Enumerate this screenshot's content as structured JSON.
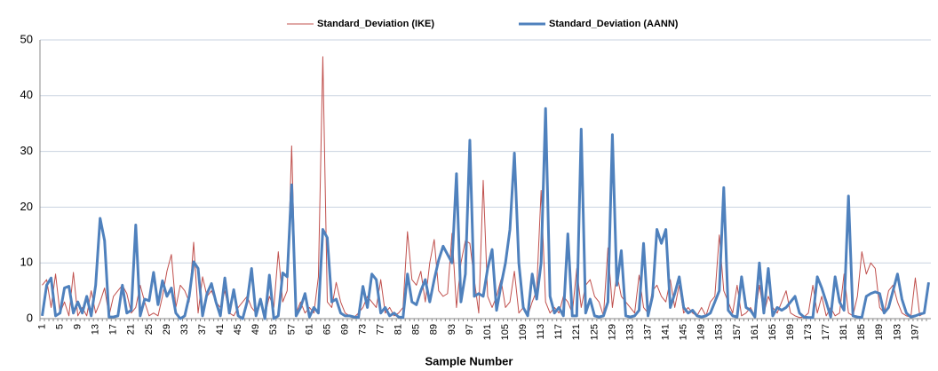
{
  "chart_data": {
    "type": "line",
    "xlabel": "Sample Number",
    "categories": [
      "1",
      null,
      null,
      null,
      "5",
      null,
      null,
      null,
      "9",
      null,
      null,
      null,
      "13",
      null,
      null,
      null,
      "17",
      null,
      null,
      null,
      "21",
      null,
      null,
      null,
      "25",
      null,
      null,
      null,
      "29",
      null,
      null,
      null,
      "33",
      null,
      null,
      null,
      "37",
      null,
      null,
      null,
      "41",
      null,
      null,
      null,
      "45",
      null,
      null,
      null,
      "49",
      null,
      null,
      null,
      "53",
      null,
      null,
      null,
      "57",
      null,
      null,
      null,
      "61",
      null,
      null,
      null,
      "65",
      null,
      null,
      null,
      "69",
      null,
      null,
      null,
      "73",
      null,
      null,
      null,
      "77",
      null,
      null,
      null,
      "81",
      null,
      null,
      null,
      "85",
      null,
      null,
      null,
      "89",
      null,
      null,
      null,
      "93",
      null,
      null,
      null,
      "97",
      null,
      null,
      null,
      "101",
      null,
      null,
      null,
      "105",
      null,
      null,
      null,
      "109",
      null,
      null,
      null,
      "113",
      null,
      null,
      null,
      "117",
      null,
      null,
      null,
      "121",
      null,
      null,
      null,
      "125",
      null,
      null,
      null,
      "129",
      null,
      null,
      null,
      "133",
      null,
      null,
      null,
      "137",
      null,
      null,
      null,
      "141",
      null,
      null,
      null,
      "145",
      null,
      null,
      null,
      "149",
      null,
      null,
      null,
      "153",
      null,
      null,
      null,
      "157",
      null,
      null,
      null,
      "161",
      null,
      null,
      null,
      "165",
      null,
      null,
      null,
      "169",
      null,
      null,
      null,
      "173",
      null,
      null,
      null,
      "177",
      null,
      null,
      null,
      "181",
      null,
      null,
      null,
      "185",
      null,
      null,
      null,
      "189",
      null,
      null,
      null,
      "193",
      null,
      null,
      null,
      "197",
      null,
      null,
      null
    ],
    "series": [
      {
        "name": "Standard_Deviation (IKE)",
        "color": "#c0504d",
        "width": 1,
        "values": [
          6,
          7,
          2,
          8,
          1,
          3,
          0.5,
          8.3,
          0.5,
          2,
          0.5,
          5,
          1,
          3,
          5.5,
          0.5,
          4,
          5,
          6,
          4.5,
          1,
          2,
          6,
          3,
          0.5,
          1,
          0.5,
          4,
          8.5,
          11.5,
          2,
          6,
          5,
          3,
          13.7,
          1,
          7.5,
          4,
          5,
          3,
          2,
          5,
          1,
          0.5,
          2,
          3,
          4,
          2,
          1,
          3,
          0.5,
          4,
          2,
          12,
          3,
          5,
          31,
          1,
          3,
          1,
          2,
          1,
          7.5,
          47,
          3,
          2,
          6.5,
          3,
          1,
          0.5,
          0.2,
          1,
          2,
          4,
          3,
          2,
          7,
          1,
          2,
          0.5,
          1,
          2,
          15.6,
          7,
          6,
          8.5,
          3,
          10,
          14.2,
          5,
          4,
          4.5,
          15.3,
          2,
          10,
          14,
          13.5,
          7,
          1,
          24.8,
          4,
          2,
          4,
          7,
          2,
          3,
          8.5,
          1,
          2,
          0.5,
          3,
          5,
          23,
          3,
          1,
          2,
          1,
          4,
          3,
          1,
          9,
          2,
          6,
          7,
          4,
          3,
          0.5,
          12.7,
          2,
          8,
          4,
          3,
          2,
          1,
          7.8,
          2,
          1,
          5,
          6,
          4,
          3,
          7,
          2,
          6,
          1,
          2,
          1,
          0.5,
          2,
          0.5,
          3,
          4,
          15,
          5,
          3,
          1,
          6,
          0.5,
          1,
          2,
          0.5,
          6,
          1,
          4,
          2,
          1,
          3,
          5,
          1,
          0.5,
          0.2,
          0.3,
          1,
          6,
          1,
          4,
          0.5,
          2,
          0.5,
          1,
          8,
          1,
          0.5,
          4,
          12,
          8,
          10,
          9,
          2,
          1,
          5,
          6,
          3,
          1,
          0.5,
          0.3,
          7.3,
          0.5,
          1,
          6.5
        ]
      },
      {
        "name": "Standard_Deviation (AANN)",
        "color": "#4f81bd",
        "width": 3,
        "values": [
          0.5,
          6,
          7.3,
          0.5,
          1,
          5.5,
          5.8,
          1,
          3,
          1,
          4,
          0.5,
          6,
          18,
          14,
          0.3,
          0.3,
          0.5,
          6,
          1,
          1.5,
          16.8,
          0.5,
          3.5,
          3.2,
          8.3,
          2.5,
          6.8,
          4,
          5.5,
          1,
          0,
          0.5,
          4,
          10.2,
          9,
          0.5,
          4.5,
          6.3,
          3,
          0.5,
          7.3,
          1,
          5.2,
          0.5,
          0,
          3,
          9,
          0.5,
          3.5,
          0,
          7.8,
          0,
          0.5,
          8.2,
          7.5,
          24,
          0.5,
          2,
          4.5,
          0.3,
          2,
          1,
          16,
          14.5,
          3,
          3.5,
          1,
          0.5,
          0.5,
          0.3,
          0.2,
          5.8,
          2,
          8,
          7,
          1,
          2,
          0.5,
          1,
          0.3,
          0.2,
          8,
          3,
          2.5,
          5,
          7,
          3,
          7,
          10.5,
          13,
          11.5,
          10,
          26,
          3,
          8,
          32,
          4,
          4.5,
          4,
          9,
          12.4,
          1.5,
          6,
          10,
          16,
          29.7,
          10,
          2,
          0.5,
          8,
          3.5,
          10,
          37.7,
          4,
          1,
          2,
          0.5,
          15.2,
          0.5,
          0.5,
          34,
          1,
          3.5,
          0.5,
          0.3,
          0.5,
          3,
          33,
          6,
          12.2,
          0.5,
          0.3,
          0.5,
          1.5,
          13.5,
          0.5,
          4,
          16,
          13.5,
          16,
          2,
          4.5,
          7.5,
          2,
          1,
          1.5,
          0.5,
          0.3,
          0.5,
          1,
          3,
          5,
          23.5,
          1.5,
          0.5,
          0.3,
          7.5,
          2,
          1.5,
          0.3,
          10,
          1,
          9,
          0.5,
          2,
          1.5,
          2,
          3,
          4,
          1,
          0.3,
          0.2,
          0.2,
          7.5,
          5.5,
          3,
          0.3,
          7.5,
          3,
          1.5,
          22,
          0.5,
          0.3,
          0.2,
          4,
          4.5,
          4.8,
          4.5,
          1,
          2,
          5,
          8,
          3.5,
          1,
          0.3,
          0.5,
          0.8,
          1,
          6.5
        ]
      }
    ],
    "ylim": [
      0,
      50
    ],
    "yticks": [
      0,
      10,
      20,
      30,
      40,
      50
    ],
    "grid": true,
    "legend": "top"
  }
}
